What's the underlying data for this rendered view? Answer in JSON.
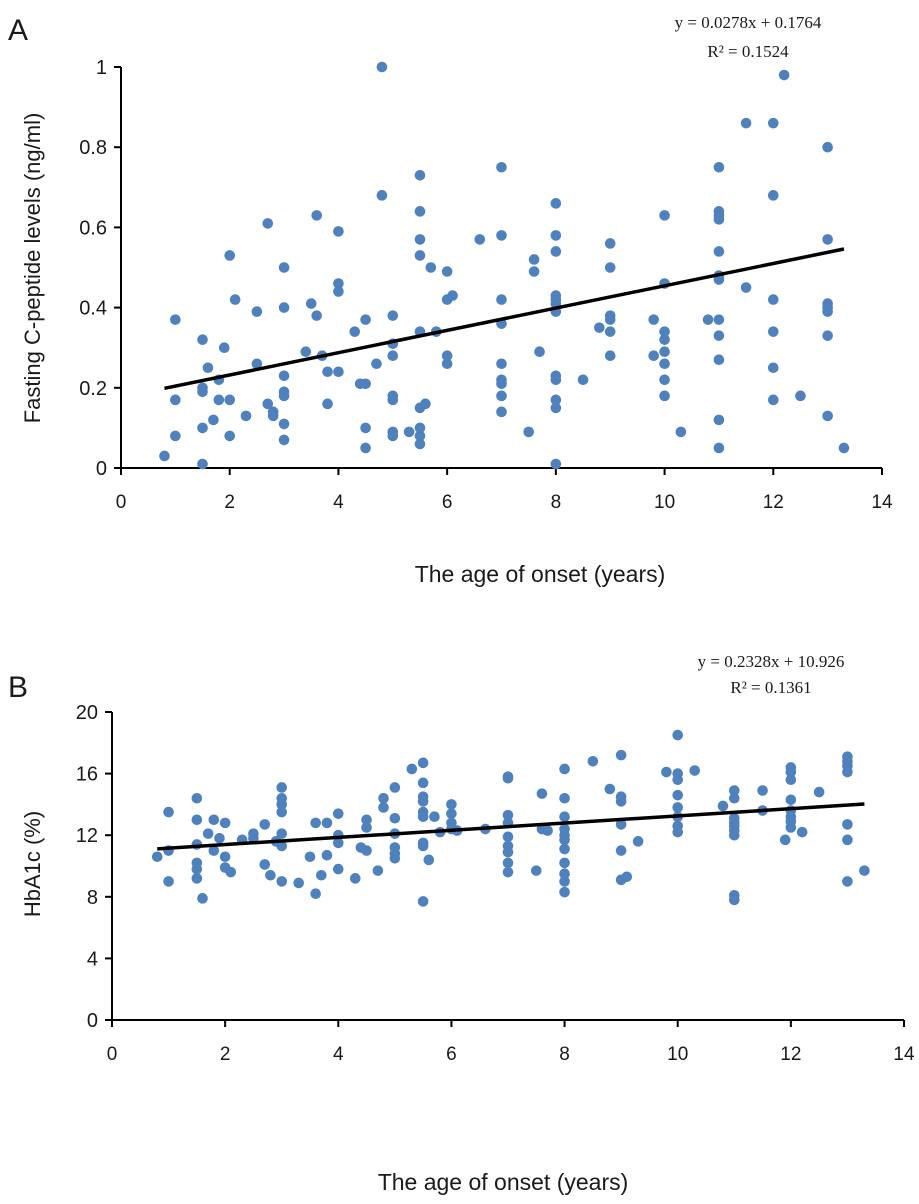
{
  "chart_data": [
    {
      "panel_label": "A",
      "type": "scatter",
      "xlabel": "The age of onset (years)",
      "ylabel": "Fasting C-peptide levels (ng/ml)",
      "xlim": [
        0,
        14
      ],
      "ylim": [
        0,
        1
      ],
      "x_ticks": [
        0,
        2,
        4,
        6,
        8,
        10,
        12,
        14
      ],
      "y_ticks": [
        0,
        0.2,
        0.4,
        0.6,
        0.8,
        1
      ],
      "x_tick_labels": [
        "0",
        "2",
        "4",
        "6",
        "8",
        "10",
        "12",
        "14"
      ],
      "y_tick_labels": [
        "0",
        "0.2",
        "0.4",
        "0.6",
        "0.8",
        "1"
      ],
      "equation": "y = 0.0278x + 0.1764",
      "r_squared": "R² = 0.1524",
      "trendline": {
        "slope": 0.0278,
        "intercept": 0.1764,
        "x_range": [
          0.8,
          13.3
        ]
      },
      "grid": false,
      "colors": {
        "points": "#4f81bd",
        "trendline": "#000000"
      },
      "points": [
        [
          0.8,
          0.03
        ],
        [
          1.0,
          0.37
        ],
        [
          1.0,
          0.17
        ],
        [
          1.0,
          0.08
        ],
        [
          1.5,
          0.32
        ],
        [
          1.5,
          0.2
        ],
        [
          1.5,
          0.19
        ],
        [
          1.5,
          0.1
        ],
        [
          1.5,
          0.01
        ],
        [
          1.6,
          0.25
        ],
        [
          1.7,
          0.12
        ],
        [
          1.8,
          0.22
        ],
        [
          1.8,
          0.17
        ],
        [
          1.9,
          0.3
        ],
        [
          2.0,
          0.53
        ],
        [
          2.0,
          0.17
        ],
        [
          2.0,
          0.08
        ],
        [
          2.1,
          0.42
        ],
        [
          2.3,
          0.13
        ],
        [
          2.5,
          0.39
        ],
        [
          2.5,
          0.26
        ],
        [
          2.7,
          0.61
        ],
        [
          2.7,
          0.16
        ],
        [
          2.8,
          0.14
        ],
        [
          2.8,
          0.13
        ],
        [
          3.0,
          0.5
        ],
        [
          3.0,
          0.4
        ],
        [
          3.0,
          0.23
        ],
        [
          3.0,
          0.19
        ],
        [
          3.0,
          0.18
        ],
        [
          3.0,
          0.11
        ],
        [
          3.0,
          0.07
        ],
        [
          3.4,
          0.29
        ],
        [
          3.5,
          0.41
        ],
        [
          3.6,
          0.63
        ],
        [
          3.6,
          0.38
        ],
        [
          3.7,
          0.28
        ],
        [
          3.8,
          0.16
        ],
        [
          3.8,
          0.24
        ],
        [
          4.0,
          0.59
        ],
        [
          4.0,
          0.46
        ],
        [
          4.0,
          0.44
        ],
        [
          4.0,
          0.24
        ],
        [
          4.3,
          0.34
        ],
        [
          4.4,
          0.21
        ],
        [
          4.5,
          0.37
        ],
        [
          4.5,
          0.21
        ],
        [
          4.5,
          0.1
        ],
        [
          4.5,
          0.05
        ],
        [
          4.7,
          0.26
        ],
        [
          4.8,
          1.0
        ],
        [
          4.8,
          0.68
        ],
        [
          5.0,
          0.38
        ],
        [
          5.0,
          0.31
        ],
        [
          5.0,
          0.28
        ],
        [
          5.0,
          0.18
        ],
        [
          5.0,
          0.17
        ],
        [
          5.0,
          0.09
        ],
        [
          5.0,
          0.08
        ],
        [
          5.3,
          0.09
        ],
        [
          5.5,
          0.73
        ],
        [
          5.5,
          0.64
        ],
        [
          5.5,
          0.57
        ],
        [
          5.5,
          0.53
        ],
        [
          5.5,
          0.34
        ],
        [
          5.5,
          0.15
        ],
        [
          5.5,
          0.1
        ],
        [
          5.5,
          0.08
        ],
        [
          5.5,
          0.06
        ],
        [
          5.6,
          0.16
        ],
        [
          5.7,
          0.5
        ],
        [
          5.8,
          0.34
        ],
        [
          6.0,
          0.49
        ],
        [
          6.0,
          0.42
        ],
        [
          6.0,
          0.28
        ],
        [
          6.0,
          0.26
        ],
        [
          6.1,
          0.43
        ],
        [
          6.6,
          0.57
        ],
        [
          7.0,
          0.75
        ],
        [
          7.0,
          0.58
        ],
        [
          7.0,
          0.42
        ],
        [
          7.0,
          0.36
        ],
        [
          7.0,
          0.26
        ],
        [
          7.0,
          0.22
        ],
        [
          7.0,
          0.21
        ],
        [
          7.0,
          0.18
        ],
        [
          7.0,
          0.14
        ],
        [
          7.5,
          0.09
        ],
        [
          7.6,
          0.52
        ],
        [
          7.6,
          0.49
        ],
        [
          7.7,
          0.29
        ],
        [
          8.0,
          0.66
        ],
        [
          8.0,
          0.58
        ],
        [
          8.0,
          0.54
        ],
        [
          8.0,
          0.43
        ],
        [
          8.0,
          0.42
        ],
        [
          8.0,
          0.41
        ],
        [
          8.0,
          0.39
        ],
        [
          8.0,
          0.23
        ],
        [
          8.0,
          0.22
        ],
        [
          8.0,
          0.17
        ],
        [
          8.0,
          0.15
        ],
        [
          8.0,
          0.01
        ],
        [
          8.5,
          0.22
        ],
        [
          8.8,
          0.35
        ],
        [
          9.0,
          0.56
        ],
        [
          9.0,
          0.5
        ],
        [
          9.0,
          0.38
        ],
        [
          9.0,
          0.37
        ],
        [
          9.0,
          0.34
        ],
        [
          9.0,
          0.28
        ],
        [
          9.8,
          0.37
        ],
        [
          9.8,
          0.28
        ],
        [
          10.0,
          0.63
        ],
        [
          10.0,
          0.46
        ],
        [
          10.0,
          0.34
        ],
        [
          10.0,
          0.32
        ],
        [
          10.0,
          0.29
        ],
        [
          10.0,
          0.26
        ],
        [
          10.0,
          0.22
        ],
        [
          10.0,
          0.18
        ],
        [
          10.3,
          0.09
        ],
        [
          10.8,
          0.37
        ],
        [
          11.0,
          0.75
        ],
        [
          11.0,
          0.64
        ],
        [
          11.0,
          0.63
        ],
        [
          11.0,
          0.62
        ],
        [
          11.0,
          0.54
        ],
        [
          11.0,
          0.48
        ],
        [
          11.0,
          0.47
        ],
        [
          11.0,
          0.37
        ],
        [
          11.0,
          0.33
        ],
        [
          11.0,
          0.27
        ],
        [
          11.0,
          0.12
        ],
        [
          11.0,
          0.05
        ],
        [
          11.5,
          0.86
        ],
        [
          11.5,
          0.45
        ],
        [
          12.0,
          0.86
        ],
        [
          12.0,
          0.68
        ],
        [
          12.0,
          0.42
        ],
        [
          12.0,
          0.34
        ],
        [
          12.0,
          0.25
        ],
        [
          12.0,
          0.17
        ],
        [
          12.2,
          0.98
        ],
        [
          12.5,
          0.18
        ],
        [
          13.0,
          0.8
        ],
        [
          13.0,
          0.57
        ],
        [
          13.0,
          0.41
        ],
        [
          13.0,
          0.4
        ],
        [
          13.0,
          0.39
        ],
        [
          13.0,
          0.33
        ],
        [
          13.0,
          0.13
        ],
        [
          13.3,
          0.05
        ]
      ]
    },
    {
      "panel_label": "B",
      "type": "scatter",
      "xlabel": "The age of onset (years)",
      "ylabel": "HbA1c (%)",
      "xlim": [
        0,
        14
      ],
      "ylim": [
        0,
        20
      ],
      "x_ticks": [
        0,
        2,
        4,
        6,
        8,
        10,
        12,
        14
      ],
      "y_ticks": [
        0,
        4,
        8,
        12,
        16,
        20
      ],
      "x_tick_labels": [
        "0",
        "2",
        "4",
        "6",
        "8",
        "10",
        "12",
        "14"
      ],
      "y_tick_labels": [
        "0",
        "4",
        "8",
        "12",
        "16",
        "20"
      ],
      "equation": "y = 0.2328x + 10.926",
      "r_squared": "R² = 0.1361",
      "trendline": {
        "slope": 0.2328,
        "intercept": 10.926,
        "x_range": [
          0.8,
          13.3
        ]
      },
      "grid": false,
      "colors": {
        "points": "#4f81bd",
        "trendline": "#000000"
      },
      "points": [
        [
          0.8,
          10.6
        ],
        [
          1.0,
          13.5
        ],
        [
          1.0,
          11.0
        ],
        [
          1.0,
          9.0
        ],
        [
          1.5,
          14.4
        ],
        [
          1.5,
          13.0
        ],
        [
          1.5,
          11.4
        ],
        [
          1.5,
          10.2
        ],
        [
          1.5,
          9.8
        ],
        [
          1.5,
          9.2
        ],
        [
          1.6,
          7.9
        ],
        [
          1.7,
          12.1
        ],
        [
          1.8,
          13.0
        ],
        [
          1.8,
          11.0
        ],
        [
          1.9,
          11.8
        ],
        [
          2.0,
          12.8
        ],
        [
          2.0,
          10.6
        ],
        [
          2.0,
          9.9
        ],
        [
          2.1,
          9.6
        ],
        [
          2.3,
          11.7
        ],
        [
          2.5,
          12.1
        ],
        [
          2.5,
          11.8
        ],
        [
          2.7,
          12.7
        ],
        [
          2.7,
          10.1
        ],
        [
          2.8,
          9.4
        ],
        [
          2.9,
          11.6
        ],
        [
          3.0,
          15.1
        ],
        [
          3.0,
          14.4
        ],
        [
          3.0,
          14.0
        ],
        [
          3.0,
          13.5
        ],
        [
          3.0,
          12.1
        ],
        [
          3.0,
          11.3
        ],
        [
          3.0,
          9.0
        ],
        [
          3.3,
          8.9
        ],
        [
          3.5,
          10.6
        ],
        [
          3.6,
          12.8
        ],
        [
          3.6,
          8.2
        ],
        [
          3.7,
          9.4
        ],
        [
          3.8,
          12.8
        ],
        [
          3.8,
          10.7
        ],
        [
          4.0,
          13.4
        ],
        [
          4.0,
          12.0
        ],
        [
          4.0,
          11.5
        ],
        [
          4.0,
          9.8
        ],
        [
          4.3,
          9.2
        ],
        [
          4.4,
          11.2
        ],
        [
          4.5,
          13.0
        ],
        [
          4.5,
          12.5
        ],
        [
          4.5,
          11.0
        ],
        [
          4.7,
          9.7
        ],
        [
          4.8,
          14.4
        ],
        [
          4.8,
          13.8
        ],
        [
          5.0,
          15.1
        ],
        [
          5.0,
          13.1
        ],
        [
          5.0,
          12.1
        ],
        [
          5.0,
          11.2
        ],
        [
          5.0,
          10.8
        ],
        [
          5.0,
          10.5
        ],
        [
          5.3,
          16.3
        ],
        [
          5.5,
          16.7
        ],
        [
          5.5,
          15.4
        ],
        [
          5.5,
          14.5
        ],
        [
          5.5,
          14.2
        ],
        [
          5.5,
          13.5
        ],
        [
          5.5,
          13.2
        ],
        [
          5.5,
          11.5
        ],
        [
          5.5,
          11.3
        ],
        [
          5.5,
          7.7
        ],
        [
          5.6,
          10.4
        ],
        [
          5.7,
          13.2
        ],
        [
          5.8,
          12.2
        ],
        [
          6.0,
          14.0
        ],
        [
          6.0,
          13.4
        ],
        [
          6.0,
          12.8
        ],
        [
          6.0,
          12.4
        ],
        [
          6.1,
          12.3
        ],
        [
          6.6,
          12.4
        ],
        [
          7.0,
          15.8
        ],
        [
          7.0,
          15.7
        ],
        [
          7.0,
          13.3
        ],
        [
          7.0,
          12.8
        ],
        [
          7.0,
          11.9
        ],
        [
          7.0,
          11.3
        ],
        [
          7.0,
          10.9
        ],
        [
          7.0,
          10.2
        ],
        [
          7.0,
          9.6
        ],
        [
          7.5,
          9.7
        ],
        [
          7.6,
          14.7
        ],
        [
          7.6,
          12.4
        ],
        [
          7.7,
          12.3
        ],
        [
          8.0,
          16.3
        ],
        [
          8.0,
          14.4
        ],
        [
          8.0,
          13.2
        ],
        [
          8.0,
          12.4
        ],
        [
          8.0,
          12.0
        ],
        [
          8.0,
          11.7
        ],
        [
          8.0,
          11.1
        ],
        [
          8.0,
          10.2
        ],
        [
          8.0,
          9.5
        ],
        [
          8.0,
          9.0
        ],
        [
          8.0,
          8.3
        ],
        [
          8.5,
          16.8
        ],
        [
          8.8,
          15.0
        ],
        [
          9.0,
          17.2
        ],
        [
          9.0,
          14.5
        ],
        [
          9.0,
          14.2
        ],
        [
          9.0,
          12.7
        ],
        [
          9.0,
          11.0
        ],
        [
          9.0,
          9.1
        ],
        [
          9.1,
          9.3
        ],
        [
          9.3,
          11.6
        ],
        [
          9.8,
          16.1
        ],
        [
          10.0,
          18.5
        ],
        [
          10.0,
          16.0
        ],
        [
          10.0,
          15.6
        ],
        [
          10.0,
          14.6
        ],
        [
          10.0,
          13.8
        ],
        [
          10.0,
          13.2
        ],
        [
          10.0,
          12.6
        ],
        [
          10.0,
          12.2
        ],
        [
          10.3,
          16.2
        ],
        [
          10.8,
          13.9
        ],
        [
          11.0,
          14.9
        ],
        [
          11.0,
          14.4
        ],
        [
          11.0,
          13.1
        ],
        [
          11.0,
          12.8
        ],
        [
          11.0,
          12.6
        ],
        [
          11.0,
          12.3
        ],
        [
          11.0,
          12.0
        ],
        [
          11.0,
          8.1
        ],
        [
          11.0,
          7.8
        ],
        [
          11.5,
          14.9
        ],
        [
          11.5,
          13.6
        ],
        [
          11.9,
          11.7
        ],
        [
          12.0,
          16.4
        ],
        [
          12.0,
          16.1
        ],
        [
          12.0,
          15.6
        ],
        [
          12.0,
          14.3
        ],
        [
          12.0,
          13.6
        ],
        [
          12.0,
          13.2
        ],
        [
          12.0,
          12.9
        ],
        [
          12.0,
          12.5
        ],
        [
          12.2,
          12.2
        ],
        [
          12.5,
          14.8
        ],
        [
          13.0,
          17.1
        ],
        [
          13.0,
          16.8
        ],
        [
          13.0,
          16.5
        ],
        [
          13.0,
          16.1
        ],
        [
          13.0,
          12.7
        ],
        [
          13.0,
          11.7
        ],
        [
          13.0,
          9.0
        ],
        [
          13.3,
          9.7
        ]
      ]
    }
  ]
}
